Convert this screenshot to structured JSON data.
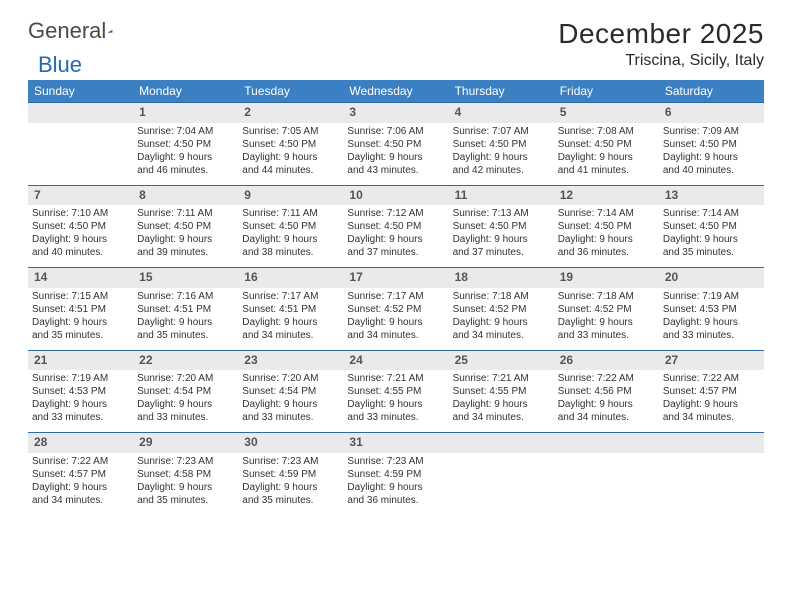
{
  "brand": {
    "part1": "General",
    "part2": "Blue"
  },
  "title": "December 2025",
  "subtitle": "Triscina, Sicily, Italy",
  "weekday_header_bg": "#3a80c3",
  "daynum_bg": "#e8eaec",
  "daynum_border": "#2f6aa8",
  "weekdays": [
    "Sunday",
    "Monday",
    "Tuesday",
    "Wednesday",
    "Thursday",
    "Friday",
    "Saturday"
  ],
  "weeks": [
    {
      "nums": [
        "",
        "1",
        "2",
        "3",
        "4",
        "5",
        "6"
      ],
      "cells": [
        null,
        {
          "sr": "Sunrise: 7:04 AM",
          "ss": "Sunset: 4:50 PM",
          "d1": "Daylight: 9 hours",
          "d2": "and 46 minutes."
        },
        {
          "sr": "Sunrise: 7:05 AM",
          "ss": "Sunset: 4:50 PM",
          "d1": "Daylight: 9 hours",
          "d2": "and 44 minutes."
        },
        {
          "sr": "Sunrise: 7:06 AM",
          "ss": "Sunset: 4:50 PM",
          "d1": "Daylight: 9 hours",
          "d2": "and 43 minutes."
        },
        {
          "sr": "Sunrise: 7:07 AM",
          "ss": "Sunset: 4:50 PM",
          "d1": "Daylight: 9 hours",
          "d2": "and 42 minutes."
        },
        {
          "sr": "Sunrise: 7:08 AM",
          "ss": "Sunset: 4:50 PM",
          "d1": "Daylight: 9 hours",
          "d2": "and 41 minutes."
        },
        {
          "sr": "Sunrise: 7:09 AM",
          "ss": "Sunset: 4:50 PM",
          "d1": "Daylight: 9 hours",
          "d2": "and 40 minutes."
        }
      ]
    },
    {
      "nums": [
        "7",
        "8",
        "9",
        "10",
        "11",
        "12",
        "13"
      ],
      "cells": [
        {
          "sr": "Sunrise: 7:10 AM",
          "ss": "Sunset: 4:50 PM",
          "d1": "Daylight: 9 hours",
          "d2": "and 40 minutes."
        },
        {
          "sr": "Sunrise: 7:11 AM",
          "ss": "Sunset: 4:50 PM",
          "d1": "Daylight: 9 hours",
          "d2": "and 39 minutes."
        },
        {
          "sr": "Sunrise: 7:11 AM",
          "ss": "Sunset: 4:50 PM",
          "d1": "Daylight: 9 hours",
          "d2": "and 38 minutes."
        },
        {
          "sr": "Sunrise: 7:12 AM",
          "ss": "Sunset: 4:50 PM",
          "d1": "Daylight: 9 hours",
          "d2": "and 37 minutes."
        },
        {
          "sr": "Sunrise: 7:13 AM",
          "ss": "Sunset: 4:50 PM",
          "d1": "Daylight: 9 hours",
          "d2": "and 37 minutes."
        },
        {
          "sr": "Sunrise: 7:14 AM",
          "ss": "Sunset: 4:50 PM",
          "d1": "Daylight: 9 hours",
          "d2": "and 36 minutes."
        },
        {
          "sr": "Sunrise: 7:14 AM",
          "ss": "Sunset: 4:50 PM",
          "d1": "Daylight: 9 hours",
          "d2": "and 35 minutes."
        }
      ]
    },
    {
      "nums": [
        "14",
        "15",
        "16",
        "17",
        "18",
        "19",
        "20"
      ],
      "cells": [
        {
          "sr": "Sunrise: 7:15 AM",
          "ss": "Sunset: 4:51 PM",
          "d1": "Daylight: 9 hours",
          "d2": "and 35 minutes."
        },
        {
          "sr": "Sunrise: 7:16 AM",
          "ss": "Sunset: 4:51 PM",
          "d1": "Daylight: 9 hours",
          "d2": "and 35 minutes."
        },
        {
          "sr": "Sunrise: 7:17 AM",
          "ss": "Sunset: 4:51 PM",
          "d1": "Daylight: 9 hours",
          "d2": "and 34 minutes."
        },
        {
          "sr": "Sunrise: 7:17 AM",
          "ss": "Sunset: 4:52 PM",
          "d1": "Daylight: 9 hours",
          "d2": "and 34 minutes."
        },
        {
          "sr": "Sunrise: 7:18 AM",
          "ss": "Sunset: 4:52 PM",
          "d1": "Daylight: 9 hours",
          "d2": "and 34 minutes."
        },
        {
          "sr": "Sunrise: 7:18 AM",
          "ss": "Sunset: 4:52 PM",
          "d1": "Daylight: 9 hours",
          "d2": "and 33 minutes."
        },
        {
          "sr": "Sunrise: 7:19 AM",
          "ss": "Sunset: 4:53 PM",
          "d1": "Daylight: 9 hours",
          "d2": "and 33 minutes."
        }
      ]
    },
    {
      "nums": [
        "21",
        "22",
        "23",
        "24",
        "25",
        "26",
        "27"
      ],
      "cells": [
        {
          "sr": "Sunrise: 7:19 AM",
          "ss": "Sunset: 4:53 PM",
          "d1": "Daylight: 9 hours",
          "d2": "and 33 minutes."
        },
        {
          "sr": "Sunrise: 7:20 AM",
          "ss": "Sunset: 4:54 PM",
          "d1": "Daylight: 9 hours",
          "d2": "and 33 minutes."
        },
        {
          "sr": "Sunrise: 7:20 AM",
          "ss": "Sunset: 4:54 PM",
          "d1": "Daylight: 9 hours",
          "d2": "and 33 minutes."
        },
        {
          "sr": "Sunrise: 7:21 AM",
          "ss": "Sunset: 4:55 PM",
          "d1": "Daylight: 9 hours",
          "d2": "and 33 minutes."
        },
        {
          "sr": "Sunrise: 7:21 AM",
          "ss": "Sunset: 4:55 PM",
          "d1": "Daylight: 9 hours",
          "d2": "and 34 minutes."
        },
        {
          "sr": "Sunrise: 7:22 AM",
          "ss": "Sunset: 4:56 PM",
          "d1": "Daylight: 9 hours",
          "d2": "and 34 minutes."
        },
        {
          "sr": "Sunrise: 7:22 AM",
          "ss": "Sunset: 4:57 PM",
          "d1": "Daylight: 9 hours",
          "d2": "and 34 minutes."
        }
      ]
    },
    {
      "nums": [
        "28",
        "29",
        "30",
        "31",
        "",
        "",
        ""
      ],
      "cells": [
        {
          "sr": "Sunrise: 7:22 AM",
          "ss": "Sunset: 4:57 PM",
          "d1": "Daylight: 9 hours",
          "d2": "and 34 minutes."
        },
        {
          "sr": "Sunrise: 7:23 AM",
          "ss": "Sunset: 4:58 PM",
          "d1": "Daylight: 9 hours",
          "d2": "and 35 minutes."
        },
        {
          "sr": "Sunrise: 7:23 AM",
          "ss": "Sunset: 4:59 PM",
          "d1": "Daylight: 9 hours",
          "d2": "and 35 minutes."
        },
        {
          "sr": "Sunrise: 7:23 AM",
          "ss": "Sunset: 4:59 PM",
          "d1": "Daylight: 9 hours",
          "d2": "and 36 minutes."
        },
        null,
        null,
        null
      ]
    }
  ]
}
